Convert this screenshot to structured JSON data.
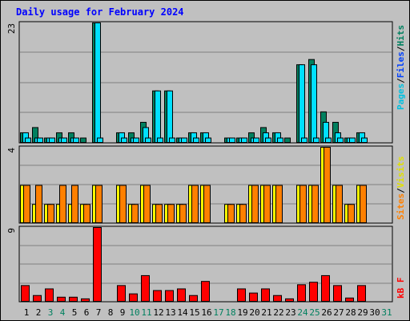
{
  "chart_data": {
    "type": "bar",
    "title": "Daily usage for February 2024",
    "categories": [
      "1",
      "2",
      "3",
      "4",
      "5",
      "6",
      "7",
      "8",
      "9",
      "10",
      "11",
      "12",
      "13",
      "14",
      "15",
      "16",
      "17",
      "18",
      "19",
      "20",
      "21",
      "22",
      "23",
      "24",
      "25",
      "26",
      "27",
      "28",
      "29",
      "30",
      "31"
    ],
    "weekend_days": [
      "3",
      "4",
      "10",
      "11",
      "17",
      "18",
      "24",
      "25",
      "31"
    ],
    "panels": [
      {
        "id": "pages-files-hits",
        "ymax_label": "23",
        "ylim": [
          0,
          23
        ],
        "legend": [
          "Pages",
          "/",
          "Files",
          "/",
          "Hits"
        ],
        "series": [
          {
            "name": "Hits",
            "values": [
              2,
              3,
              1,
              2,
              2,
              1,
              23,
              0,
              2,
              2,
              4,
              10,
              10,
              1,
              2,
              2,
              0,
              1,
              1,
              2,
              3,
              2,
              1,
              15,
              16,
              6,
              4,
              1,
              2,
              null,
              null
            ]
          },
          {
            "name": "Files",
            "values": [
              2,
              1,
              1,
              1,
              1,
              0,
              23,
              0,
              2,
              1,
              3,
              10,
              10,
              1,
              2,
              2,
              0,
              1,
              1,
              1,
              2,
              2,
              0,
              15,
              15,
              4,
              2,
              1,
              2,
              null,
              null
            ]
          },
          {
            "name": "Pages",
            "values": [
              1,
              1,
              1,
              1,
              1,
              0,
              1,
              0,
              1,
              1,
              1,
              1,
              1,
              1,
              1,
              1,
              0,
              1,
              1,
              1,
              1,
              1,
              0,
              1,
              1,
              1,
              1,
              1,
              1,
              null,
              null
            ]
          }
        ]
      },
      {
        "id": "visits-sites",
        "ymax_label": "4",
        "ylim": [
          0,
          4
        ],
        "legend": [
          "Sites",
          "/",
          "Visits"
        ],
        "series": [
          {
            "name": "Visits",
            "values": [
              2,
              1,
              1,
              1,
              1,
              1,
              2,
              0,
              2,
              1,
              2,
              1,
              1,
              1,
              2,
              2,
              0,
              1,
              1,
              2,
              2,
              2,
              0,
              2,
              2,
              4,
              2,
              1,
              2,
              null,
              null
            ]
          },
          {
            "name": "Sites",
            "values": [
              2,
              2,
              1,
              2,
              2,
              1,
              2,
              0,
              2,
              1,
              2,
              1,
              1,
              1,
              2,
              2,
              0,
              1,
              1,
              2,
              2,
              2,
              0,
              2,
              2,
              4,
              2,
              1,
              2,
              null,
              null
            ]
          }
        ]
      },
      {
        "id": "kbytes",
        "ymax_label": "9",
        "ylim": [
          0,
          9
        ],
        "legend": [
          "kB F"
        ],
        "series": [
          {
            "name": "kB F",
            "values": [
              2,
              0.8,
              1.6,
              0.6,
              0.6,
              0.4,
              9,
              0,
              2,
              1,
              3.2,
              1.4,
              1.4,
              1.6,
              0.8,
              2.5,
              0,
              0,
              1.6,
              1.1,
              1.6,
              0.8,
              0.4,
              2.1,
              2.4,
              3.2,
              2,
              0.5,
              2,
              null,
              null
            ]
          }
        ]
      }
    ]
  },
  "colors": {
    "background": "#c0c0c0",
    "plot_background": "#c0c0c0",
    "title": "#0000ff",
    "weekday_label": "#000000",
    "weekend_label": "#00805f",
    "hits": "#00805f",
    "files": "#00e0ff",
    "pages": "#00e0ff",
    "visits": "#ffff00",
    "sites": "#ff8000",
    "kbytes": "#ff0000",
    "legend_hits": "#00805f",
    "legend_files": "#0040ff",
    "legend_pages": "#00c0e0",
    "legend_visits": "#e0e000",
    "legend_sites": "#ff8000",
    "legend_kbytes": "#ff0000"
  }
}
